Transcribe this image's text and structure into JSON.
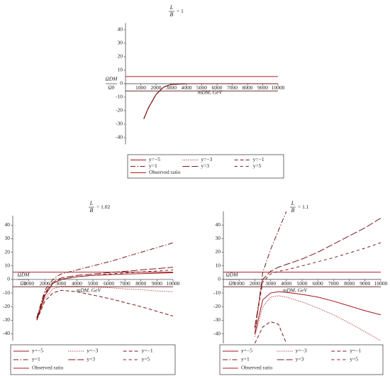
{
  "chart_data": [
    {
      "type": "line",
      "title_numerator": "L",
      "title_denominator": "B",
      "title_value": "= 1",
      "y_label_numerator": "ΩDM",
      "y_label_denominator": "Ωb",
      "x_label": "mDM, GeV",
      "x": [
        1200,
        1500,
        2000,
        2500,
        3000,
        4000,
        5000,
        6000,
        7000,
        8000,
        9000,
        10000
      ],
      "series": [
        {
          "name": "y=−5",
          "color": "#a3161c",
          "dash": "solid",
          "values": [
            -26,
            -18,
            -8,
            -2.5,
            -0.5,
            0,
            0,
            0,
            0,
            0,
            0,
            0
          ]
        },
        {
          "name": "y=−3",
          "color": "#a3161c",
          "dash": "dot",
          "values": [
            -26,
            -18,
            -8,
            -2.5,
            -0.5,
            0,
            0,
            0,
            0,
            0,
            0,
            0
          ]
        },
        {
          "name": "y=−1",
          "color": "#7a1a1a",
          "dash": "dash",
          "values": [
            -26,
            -18,
            -8,
            -2.5,
            -0.5,
            0,
            0,
            0,
            0,
            0,
            0,
            0
          ]
        },
        {
          "name": "y=1",
          "color": "#7a1a1a",
          "dash": "dashdot",
          "values": [
            -26,
            -18,
            -8,
            -2.5,
            -0.5,
            0,
            0,
            0,
            0,
            0,
            0,
            0
          ]
        },
        {
          "name": "y=3",
          "color": "#7a1a1a",
          "dash": "longdash",
          "values": [
            -26,
            -18,
            -8,
            -2.5,
            -0.5,
            0,
            0,
            0,
            0,
            0,
            0,
            0
          ]
        },
        {
          "name": "y=5",
          "color": "#7a1a1a",
          "dash": "spacedash",
          "values": [
            -26,
            -18,
            -8,
            -2.5,
            -0.5,
            0,
            0,
            0,
            0,
            0,
            0,
            0
          ]
        }
      ],
      "observed": {
        "name": "Observed ratio",
        "color": "#b01c22",
        "value": 5.36
      },
      "reference_lines": [
        -5.36
      ],
      "xlim": [
        0,
        10000
      ],
      "ylim": [
        -45,
        45
      ],
      "xticks": [
        1000,
        2000,
        3000,
        4000,
        5000,
        6000,
        7000,
        8000,
        9000,
        10000
      ],
      "yticks": [
        -40,
        -30,
        -20,
        -10,
        0,
        10,
        20,
        30,
        40
      ]
    },
    {
      "type": "line",
      "title_numerator": "L",
      "title_denominator": "B",
      "title_value": "= 1.02",
      "y_label_numerator": "ΩDM",
      "y_label_denominator": "Ωb",
      "x_label": "mDM, GeV",
      "x": [
        1500,
        2000,
        2500,
        3000,
        4000,
        5000,
        6000,
        7000,
        8000,
        9000,
        10000
      ],
      "series": [
        {
          "name": "y=−5",
          "color": "#a3161c",
          "dash": "solid",
          "values": [
            -30,
            -12,
            -3,
            0,
            2,
            3,
            3.5,
            4,
            4.3,
            4.6,
            5
          ]
        },
        {
          "name": "y=−3",
          "color": "#a3161c",
          "dash": "dot",
          "values": [
            -30,
            -14,
            -7,
            -5,
            -5,
            -5.5,
            -6,
            -7,
            -7.5,
            -8.5,
            -9
          ]
        },
        {
          "name": "y=−1",
          "color": "#7a1a1a",
          "dash": "dash",
          "values": [
            -30,
            -16,
            -10,
            -8,
            -9,
            -11.5,
            -14,
            -17,
            -20,
            -23.5,
            -27
          ]
        },
        {
          "name": "y=1",
          "color": "#7a1a1a",
          "dash": "dashdot",
          "values": [
            -28,
            -8,
            0,
            4,
            7,
            10,
            13,
            16.5,
            20,
            23.5,
            27
          ]
        },
        {
          "name": "y=3",
          "color": "#7a1a1a",
          "dash": "longdash",
          "values": [
            -29,
            -10,
            -2,
            1,
            3,
            4,
            5,
            6,
            7,
            8,
            9
          ]
        },
        {
          "name": "y=5",
          "color": "#7a1a1a",
          "dash": "spacedash",
          "values": [
            -29,
            -11,
            -3,
            0,
            2,
            3,
            4,
            4.8,
            5.5,
            6.2,
            7
          ]
        }
      ],
      "observed": {
        "name": "Observed ratio",
        "color": "#b01c22",
        "value": 5.36
      },
      "reference_lines": [
        -5.36
      ],
      "xlim": [
        0,
        10000
      ],
      "ylim": [
        -45,
        47
      ],
      "xticks": [
        1000,
        2000,
        3000,
        4000,
        5000,
        6000,
        7000,
        8000,
        9000,
        10000
      ],
      "yticks": [
        -40,
        -30,
        -20,
        -10,
        0,
        10,
        20,
        30,
        40
      ]
    },
    {
      "type": "line",
      "title_numerator": "L",
      "title_denominator": "B",
      "title_value": "= 1.1",
      "y_label_numerator": "ΩDM",
      "y_label_denominator": "Ωb",
      "x_label": "mDM, GeV",
      "x": [
        2000,
        2500,
        3000,
        3500,
        4000,
        5000,
        6000,
        7000,
        8000,
        9000,
        10000
      ],
      "series": [
        {
          "name": "y=−5",
          "color": "#a3161c",
          "dash": "solid",
          "values": [
            -40,
            -15,
            -10,
            -9,
            -9.5,
            -11,
            -13,
            -16,
            -19.5,
            -23,
            -26
          ]
        },
        {
          "name": "y=−3",
          "color": "#a3161c",
          "dash": "dot",
          "values": [
            -42,
            -20,
            -13,
            -12,
            -13,
            -16.5,
            -21,
            -26,
            -32,
            -38.5,
            -45
          ]
        },
        {
          "name": "y=−1",
          "color": "#7a1a1a",
          "dash": "dash",
          "values": [
            -47,
            -35,
            -31,
            -33,
            -47,
            null,
            null,
            null,
            null,
            null,
            null
          ]
        },
        {
          "name": "y=1",
          "color": "#7a1a1a",
          "dash": "dashdot",
          "values": [
            -40,
            5,
            22,
            36,
            50,
            null,
            null,
            null,
            null,
            null,
            null
          ]
        },
        {
          "name": "y=3",
          "color": "#7a1a1a",
          "dash": "longdash",
          "values": [
            -35,
            0,
            6,
            9,
            11,
            15,
            20,
            26,
            32,
            38,
            45
          ]
        },
        {
          "name": "y=5",
          "color": "#7a1a1a",
          "dash": "spacedash",
          "values": [
            -36,
            -2,
            4,
            6,
            7,
            10,
            13,
            16,
            19.5,
            23,
            27
          ]
        }
      ],
      "observed": {
        "name": "Observed ratio",
        "color": "#b01c22",
        "value": 5.36
      },
      "reference_lines": [
        -5.36
      ],
      "xlim": [
        0,
        10000
      ],
      "ylim": [
        -47,
        50
      ],
      "xticks": [
        1000,
        2000,
        3000,
        4000,
        5000,
        6000,
        7000,
        8000,
        9000,
        10000
      ],
      "yticks": [
        -40,
        -30,
        -20,
        -10,
        0,
        10,
        20,
        30,
        40
      ]
    }
  ]
}
